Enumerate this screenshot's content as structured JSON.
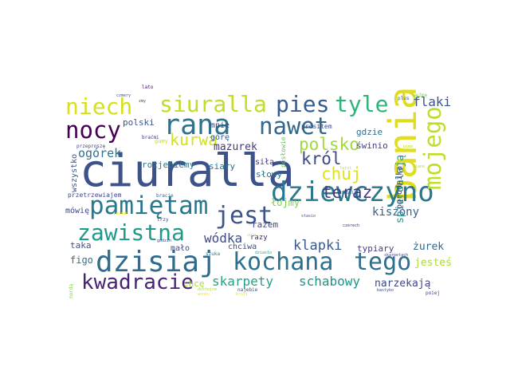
{
  "words": [
    {
      "text": "ciuralla",
      "color": "#3b528b",
      "size": "xxl"
    },
    {
      "text": "bania",
      "color": "#e0dd1f",
      "size": "xl",
      "rotate": true
    },
    {
      "text": "dziewczyno",
      "color": "#2a788e",
      "size": "l"
    },
    {
      "text": "dzisiaj",
      "color": "#2f6b8e",
      "size": "l"
    },
    {
      "text": "pamiętam",
      "color": "#2a788e",
      "size": "l"
    },
    {
      "text": "kochana",
      "color": "#2c728e",
      "size": "l"
    },
    {
      "text": "rana",
      "color": "#2c728e",
      "size": "l"
    },
    {
      "text": "jest",
      "color": "#3b528b",
      "size": "l"
    },
    {
      "text": "zawistna",
      "color": "#1f9a8a",
      "size": "l"
    },
    {
      "text": "nawet",
      "color": "#31688e",
      "size": "l"
    },
    {
      "text": "mojego",
      "color": "#bddf26",
      "size": "l",
      "rotate": true
    },
    {
      "text": "tego",
      "color": "#2e6e8e",
      "size": "l"
    },
    {
      "text": "nocy",
      "color": "#440154",
      "size": "l"
    },
    {
      "text": "niech",
      "color": "#d5e21a",
      "size": "l"
    },
    {
      "text": "siuralla",
      "color": "#bddf26",
      "size": "l"
    },
    {
      "text": "pies",
      "color": "#365c8d",
      "size": "l"
    },
    {
      "text": "tyle",
      "color": "#2fb47c",
      "size": "l"
    },
    {
      "text": "kwadracie",
      "color": "#482475",
      "size": "l"
    },
    {
      "text": "polsko",
      "color": "#a0da39",
      "size": "m"
    },
    {
      "text": "chuj",
      "color": "#dde318",
      "size": "m"
    },
    {
      "text": "król",
      "color": "#3e4989",
      "size": "m"
    },
    {
      "text": "teraz",
      "color": "#443983",
      "size": "m"
    },
    {
      "text": "kurwa",
      "color": "#d2e21b",
      "size": "m"
    },
    {
      "text": "flaki",
      "color": "#3b528b",
      "size": "m"
    },
    {
      "text": "klapki",
      "color": "#375a8c",
      "size": "m"
    },
    {
      "text": "skarpety",
      "color": "#20a386",
      "size": "m"
    },
    {
      "text": "schabowy",
      "color": "#1f948c",
      "size": "m"
    },
    {
      "text": "wódka",
      "color": "#3e4989",
      "size": "m"
    },
    {
      "text": "kiszony",
      "color": "#355f8d",
      "size": "m"
    },
    {
      "text": "mazurek",
      "color": "#453781",
      "size": "s"
    },
    {
      "text": "ogórek",
      "color": "#2c728e",
      "size": "s"
    },
    {
      "text": "spierdalają",
      "color": "#1f958b",
      "size": "s",
      "rotate": true
    },
    {
      "text": "żurek",
      "color": "#31688e",
      "size": "s"
    },
    {
      "text": "typiary",
      "color": "#433e85",
      "size": "s"
    },
    {
      "text": "narzekają",
      "color": "#3f4788",
      "size": "s"
    },
    {
      "text": "jesteś",
      "color": "#addc30",
      "size": "s"
    },
    {
      "text": "figo",
      "color": "#2d708e",
      "size": "s"
    },
    {
      "text": "taka",
      "color": "#3b528b",
      "size": "s"
    },
    {
      "text": "chcę",
      "color": "#a5db36",
      "size": "s"
    },
    {
      "text": "mało",
      "color": "#3e4c8a",
      "size": "s"
    },
    {
      "text": "polski",
      "color": "#3a548c",
      "size": "s"
    },
    {
      "text": "mnie",
      "color": "#404387",
      "size": "s"
    },
    {
      "text": "górę",
      "color": "#365d8d",
      "size": "s"
    },
    {
      "text": "rozjebiemy",
      "color": "#2c738e",
      "size": "s"
    },
    {
      "text": "siary",
      "color": "#2a768e",
      "size": "s"
    },
    {
      "text": "gdzie",
      "color": "#2e6d8e",
      "size": "s"
    },
    {
      "text": "świnio",
      "color": "#433d84",
      "size": "s"
    },
    {
      "text": "łójmy",
      "color": "#7ad151",
      "size": "s"
    },
    {
      "text": "słowy",
      "color": "#2d718e",
      "size": "s"
    },
    {
      "text": "razem",
      "color": "#3e4a89",
      "size": "s"
    },
    {
      "text": "chciwa",
      "color": "#3d4d8a",
      "size": "s"
    },
    {
      "text": "razy",
      "color": "#482878",
      "size": "s"
    },
    {
      "text": "siłą",
      "color": "#46307e",
      "size": "s"
    },
    {
      "text": "ogrodnika",
      "color": "#424086",
      "size": "s",
      "rotate": true
    },
    {
      "text": "mówię",
      "color": "#3f4788",
      "size": "s"
    },
    {
      "text": "wszystko",
      "color": "#39558c",
      "size": "s",
      "rotate": true
    },
    {
      "text": "przetrzewiajem",
      "color": "#404688",
      "size": "xs"
    },
    {
      "text": "prosiłem",
      "color": "#3d4e8a",
      "size": "xs"
    },
    {
      "text": "posłowie",
      "color": "#63cb5f",
      "size": "xs",
      "rotate": true
    },
    {
      "text": "gumy",
      "color": "#c8e020",
      "size": "xs"
    },
    {
      "text": "braćmi",
      "color": "#46327e",
      "size": "xs"
    },
    {
      "text": "przeproszę",
      "color": "#3f4889",
      "size": "xs"
    },
    {
      "text": "lato",
      "color": "#471365",
      "size": "xs"
    },
    {
      "text": "zmy",
      "color": "#424086",
      "size": "xs"
    },
    {
      "text": "czmery",
      "color": "#3b518b",
      "size": "xs"
    },
    {
      "text": "plus",
      "color": "#3d4e8a",
      "size": "xs"
    },
    {
      "text": "weźmę",
      "color": "#86d549",
      "size": "xs"
    },
    {
      "text": "pima",
      "color": "#bade28",
      "size": "xs"
    },
    {
      "text": "kiano",
      "color": "#b5de2b",
      "size": "xs"
    },
    {
      "text": "szuka",
      "color": "#2a788e",
      "size": "xs"
    },
    {
      "text": "dostojne",
      "color": "#addc30",
      "size": "xs"
    },
    {
      "text": "najebie",
      "color": "#3e4989",
      "size": "xs"
    },
    {
      "text": "dziasło",
      "color": "#25ab82",
      "size": "xs"
    },
    {
      "text": "skarpetach",
      "color": "#3f4788",
      "size": "xs"
    },
    {
      "text": "czerech",
      "color": "#472c7a",
      "size": "xs"
    },
    {
      "text": "stasio",
      "color": "#3e4989",
      "size": "xs"
    },
    {
      "text": "chapali",
      "color": "#355e8d",
      "size": "xs"
    },
    {
      "text": "bracie",
      "color": "#31688e",
      "size": "xs"
    },
    {
      "text": "trzy",
      "color": "#3f4788",
      "size": "xs"
    },
    {
      "text": "jedzni",
      "color": "#f1e51d",
      "size": "xs"
    },
    {
      "text": "godzin",
      "color": "#404688",
      "size": "xs"
    },
    {
      "text": "poiej",
      "color": "#3e4a89",
      "size": "xs"
    },
    {
      "text": "bastyko",
      "color": "#3f4788",
      "size": "xs"
    },
    {
      "text": "mordą",
      "color": "#89d548",
      "size": "xs",
      "rotate": true
    },
    {
      "text": "wonku",
      "color": "#f1e51d",
      "size": "xs"
    },
    {
      "text": "kroli",
      "color": "#e2e418",
      "size": "xs"
    },
    {
      "text": "fajot",
      "color": "#c0df25",
      "size": "xs"
    },
    {
      "text": "cure",
      "color": "#d0e11c",
      "size": "xs"
    }
  ]
}
